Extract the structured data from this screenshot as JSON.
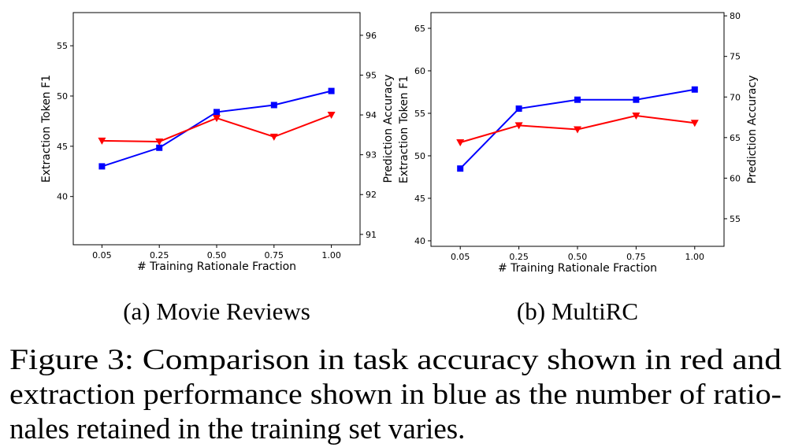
{
  "chart_data": [
    {
      "type": "line",
      "title": "(a) Movie Reviews",
      "x_label": "# Training Rationale Fraction",
      "y_label": "Extraction Token F1",
      "y2_label": "Prediction Accuracy",
      "categories": [
        "0.05",
        "0.25",
        "0.50",
        "0.75",
        "1.00"
      ],
      "ylim": [
        35.2,
        58.3
      ],
      "yticks": [
        40,
        45,
        50,
        55
      ],
      "y2lim": [
        90.74,
        96.57
      ],
      "y2ticks": [
        91,
        92,
        93,
        94,
        95,
        96
      ],
      "series": [
        {
          "color": "#0000ff",
          "marker": "square",
          "values": [
            43.0,
            44.85,
            48.4,
            49.1,
            50.5
          ]
        },
        {
          "color": "#ff0000",
          "marker": "triangle-down",
          "axis": "y2",
          "values": [
            93.35,
            93.33,
            93.92,
            93.45,
            94.0
          ]
        }
      ]
    },
    {
      "type": "line",
      "title": "(b) MultiRC",
      "x_label": "# Training Rationale Fraction",
      "y_label": "Extraction Token F1",
      "y2_label": "Prediction Accuracy",
      "categories": [
        "0.05",
        "0.25",
        "0.50",
        "0.75",
        "1.00"
      ],
      "ylim": [
        39.35,
        66.85
      ],
      "yticks": [
        40,
        45,
        50,
        55,
        60,
        65
      ],
      "y2lim": [
        51.6,
        80.4
      ],
      "y2ticks": [
        55,
        60,
        65,
        70,
        75,
        80
      ],
      "series": [
        {
          "color": "#0000ff",
          "marker": "square",
          "values": [
            48.5,
            55.55,
            56.6,
            56.6,
            57.8
          ]
        },
        {
          "color": "#ff0000",
          "marker": "triangle-down",
          "axis": "y2",
          "values": [
            64.4,
            66.5,
            66.0,
            67.7,
            66.8
          ]
        }
      ]
    }
  ],
  "caption": [
    "Figure 3: Comparison in task accuracy shown in red and",
    "extraction performance shown in blue as the number of ratio-",
    "nales retained in the training set varies."
  ]
}
